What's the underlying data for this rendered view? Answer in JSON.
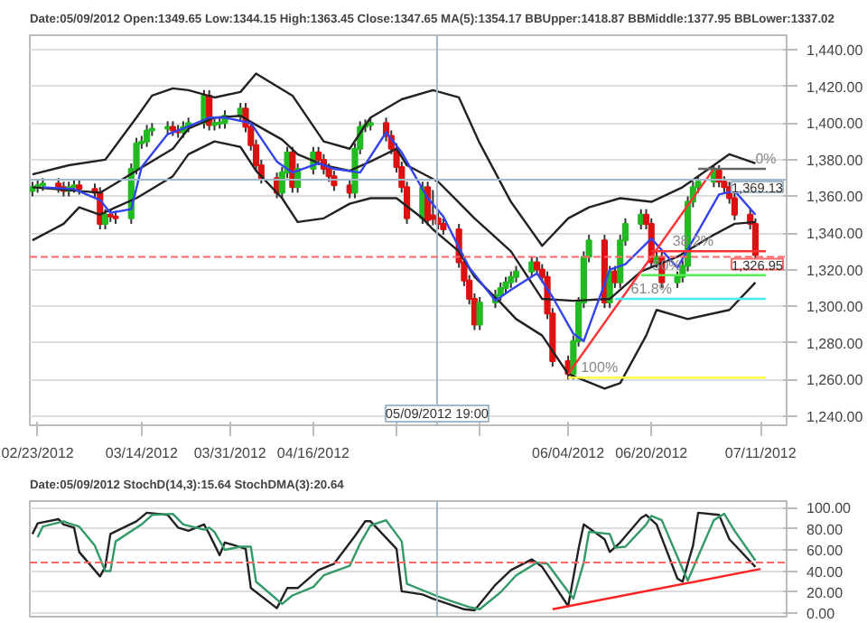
{
  "chart_data": [
    {
      "type": "candlestick",
      "title": "Date:05/09/2012 Open:1349.65 Low:1344.15 High:1363.45 Close:1347.65 MA(5):1354.17 BBUpper:1418.87 BBMiddle:1377.95 BBLower:1337.02",
      "x": [
        "2012-02-22",
        "2012-02-23",
        "2012-02-24",
        "2012-02-27",
        "2012-02-28",
        "2012-02-29",
        "2012-03-01",
        "2012-03-02",
        "2012-03-05",
        "2012-03-06",
        "2012-03-07",
        "2012-03-08",
        "2012-03-09",
        "2012-03-12",
        "2012-03-13",
        "2012-03-14",
        "2012-03-15",
        "2012-03-16",
        "2012-03-19",
        "2012-03-20",
        "2012-03-21",
        "2012-03-22",
        "2012-03-23",
        "2012-03-26",
        "2012-03-27",
        "2012-03-28",
        "2012-03-29",
        "2012-03-30",
        "2012-04-02",
        "2012-04-03",
        "2012-04-04",
        "2012-04-05",
        "2012-04-06",
        "2012-04-09",
        "2012-04-10",
        "2012-04-11",
        "2012-04-12",
        "2012-04-13",
        "2012-04-16",
        "2012-04-17",
        "2012-04-18",
        "2012-04-19",
        "2012-04-20",
        "2012-04-23",
        "2012-04-24",
        "2012-04-25",
        "2012-04-26",
        "2012-04-27",
        "2012-04-30",
        "2012-05-01",
        "2012-05-02",
        "2012-05-03",
        "2012-05-04",
        "2012-05-07",
        "2012-05-08",
        "2012-05-09",
        "2012-05-10",
        "2012-05-11",
        "2012-05-14",
        "2012-05-15",
        "2012-05-16",
        "2012-05-17",
        "2012-05-18",
        "2012-05-21",
        "2012-05-22",
        "2012-05-23",
        "2012-05-24",
        "2012-05-25",
        "2012-05-28",
        "2012-05-29",
        "2012-05-30",
        "2012-05-31",
        "2012-06-01",
        "2012-06-04",
        "2012-06-05",
        "2012-06-06",
        "2012-06-07",
        "2012-06-08",
        "2012-06-11",
        "2012-06-12",
        "2012-06-13",
        "2012-06-14",
        "2012-06-15",
        "2012-06-18",
        "2012-06-19",
        "2012-06-20",
        "2012-06-21",
        "2012-06-22",
        "2012-06-25",
        "2012-06-26",
        "2012-06-27",
        "2012-06-28",
        "2012-06-29",
        "2012-07-02",
        "2012-07-03",
        "2012-07-04",
        "2012-07-05",
        "2012-07-06",
        "2012-07-09",
        "2012-07-10"
      ],
      "ohlc": [
        [
          1363,
          1368,
          1360,
          1365
        ],
        [
          1365,
          1369,
          1362,
          1366
        ],
        [
          1366,
          1370,
          1363,
          1367
        ],
        [
          1367,
          1370,
          1362,
          1365
        ],
        [
          1365,
          1368,
          1360,
          1363
        ],
        [
          1363,
          1368,
          1360,
          1365
        ],
        [
          1365,
          1369,
          1362,
          1366
        ],
        [
          1366,
          1369,
          1361,
          1364
        ],
        [
          1364,
          1367,
          1359,
          1362
        ],
        [
          1362,
          1365,
          1342,
          1345
        ],
        [
          1345,
          1353,
          1342,
          1350
        ],
        [
          1350,
          1353,
          1346,
          1349
        ],
        [
          1349,
          1352,
          1345,
          1348
        ],
        [
          1348,
          1378,
          1345,
          1375
        ],
        [
          1375,
          1392,
          1372,
          1389
        ],
        [
          1389,
          1393,
          1386,
          1390
        ],
        [
          1390,
          1399,
          1387,
          1396
        ],
        [
          1396,
          1400,
          1393,
          1397
        ],
        [
          1397,
          1401,
          1394,
          1398
        ],
        [
          1398,
          1401,
          1393,
          1396
        ],
        [
          1396,
          1399,
          1392,
          1395
        ],
        [
          1395,
          1401,
          1392,
          1398
        ],
        [
          1398,
          1403,
          1395,
          1400
        ],
        [
          1400,
          1418,
          1397,
          1415
        ],
        [
          1415,
          1418,
          1396,
          1399
        ],
        [
          1399,
          1403,
          1396,
          1400
        ],
        [
          1400,
          1403,
          1397,
          1400
        ],
        [
          1400,
          1407,
          1397,
          1404
        ],
        [
          1404,
          1411,
          1401,
          1408
        ],
        [
          1408,
          1411,
          1395,
          1398
        ],
        [
          1398,
          1401,
          1385,
          1388
        ],
        [
          1388,
          1391,
          1374,
          1377
        ],
        [
          1377,
          1380,
          1367,
          1370
        ],
        [
          1370,
          1373,
          1359,
          1362
        ],
        [
          1362,
          1376,
          1359,
          1373
        ],
        [
          1373,
          1387,
          1370,
          1384
        ],
        [
          1384,
          1387,
          1362,
          1365
        ],
        [
          1365,
          1378,
          1362,
          1375
        ],
        [
          1375,
          1387,
          1372,
          1384
        ],
        [
          1384,
          1387,
          1377,
          1380
        ],
        [
          1380,
          1383,
          1372,
          1375
        ],
        [
          1375,
          1378,
          1368,
          1371
        ],
        [
          1371,
          1374,
          1363,
          1366
        ],
        [
          1366,
          1369,
          1359,
          1362
        ],
        [
          1362,
          1389,
          1359,
          1386
        ],
        [
          1386,
          1401,
          1383,
          1398
        ],
        [
          1398,
          1402,
          1395,
          1399
        ],
        [
          1399,
          1403,
          1396,
          1400
        ],
        [
          1400,
          1403,
          1390,
          1393
        ],
        [
          1393,
          1396,
          1383,
          1386
        ],
        [
          1386,
          1389,
          1373,
          1376
        ],
        [
          1376,
          1379,
          1362,
          1365
        ],
        [
          1365,
          1368,
          1345,
          1348
        ],
        [
          1348,
          1368,
          1345,
          1365
        ],
        [
          1365,
          1368,
          1344,
          1347
        ],
        [
          1349.65,
          1363.45,
          1344.15,
          1347.65
        ],
        [
          1348,
          1351,
          1342,
          1345
        ],
        [
          1345,
          1348,
          1339,
          1342
        ],
        [
          1342,
          1345,
          1321,
          1324
        ],
        [
          1324,
          1327,
          1311,
          1314
        ],
        [
          1314,
          1317,
          1301,
          1304
        ],
        [
          1304,
          1307,
          1287,
          1290
        ],
        [
          1290,
          1305,
          1287,
          1302
        ],
        [
          1302,
          1309,
          1299,
          1306
        ],
        [
          1306,
          1313,
          1303,
          1310
        ],
        [
          1310,
          1316,
          1307,
          1313
        ],
        [
          1313,
          1319,
          1310,
          1316
        ],
        [
          1316,
          1322,
          1313,
          1319
        ],
        [
          1319,
          1327,
          1316,
          1324
        ],
        [
          1324,
          1327,
          1317,
          1320
        ],
        [
          1320,
          1323,
          1313,
          1316
        ],
        [
          1316,
          1319,
          1293,
          1296
        ],
        [
          1296,
          1299,
          1267,
          1270
        ],
        [
          1270,
          1273,
          1260,
          1263
        ],
        [
          1263,
          1284,
          1260,
          1281
        ],
        [
          1281,
          1305,
          1278,
          1302
        ],
        [
          1302,
          1330,
          1299,
          1327
        ],
        [
          1327,
          1339,
          1324,
          1336
        ],
        [
          1336,
          1339,
          1299,
          1302
        ],
        [
          1302,
          1322,
          1299,
          1319
        ],
        [
          1319,
          1322,
          1310,
          1313
        ],
        [
          1313,
          1339,
          1310,
          1336
        ],
        [
          1336,
          1348,
          1333,
          1345
        ],
        [
          1345,
          1353,
          1342,
          1350
        ],
        [
          1350,
          1353,
          1342,
          1345
        ],
        [
          1345,
          1348,
          1321,
          1324
        ],
        [
          1324,
          1330,
          1321,
          1327
        ],
        [
          1327,
          1330,
          1310,
          1313
        ],
        [
          1313,
          1319,
          1310,
          1316
        ],
        [
          1316,
          1325,
          1313,
          1322
        ],
        [
          1322,
          1360,
          1319,
          1357
        ],
        [
          1357,
          1368,
          1354,
          1365
        ],
        [
          1365,
          1371,
          1362,
          1368
        ],
        [
          1368,
          1377,
          1365,
          1374
        ],
        [
          1374,
          1377,
          1365,
          1368
        ],
        [
          1368,
          1371,
          1362,
          1365
        ],
        [
          1365,
          1368,
          1356,
          1359
        ],
        [
          1359,
          1362,
          1347,
          1350
        ],
        [
          1350,
          1353,
          1342,
          1345
        ],
        [
          1345,
          1348,
          1325,
          1328
        ]
      ],
      "series": [
        {
          "type": "line",
          "color": "#222222",
          "x": [
            "2012-02-22",
            "2012-02-29",
            "2012-03-07",
            "2012-03-13",
            "2012-03-16",
            "2012-03-20",
            "2012-03-23",
            "2012-03-28",
            "2012-04-02",
            "2012-04-05",
            "2012-04-12",
            "2012-04-18",
            "2012-04-23",
            "2012-04-27",
            "2012-05-03",
            "2012-05-09",
            "2012-05-14",
            "2012-05-18",
            "2012-05-24",
            "2012-05-30",
            "2012-06-04",
            "2012-06-08",
            "2012-06-14",
            "2012-06-20",
            "2012-06-26",
            "2012-07-02",
            "2012-07-05",
            "2012-07-10"
          ],
          "values": [
            1372,
            1377,
            1380,
            1403,
            1415,
            1419,
            1418,
            1414,
            1417,
            1427,
            1415,
            1390,
            1386,
            1403,
            1413,
            1418,
            1414,
            1389,
            1357,
            1333,
            1348,
            1354,
            1359,
            1357,
            1365,
            1377,
            1383,
            1378
          ]
        },
        {
          "type": "line",
          "color": "#222222",
          "x": [
            "2012-02-22",
            "2012-03-06",
            "2012-03-09",
            "2012-03-13",
            "2012-03-20",
            "2012-03-23",
            "2012-03-28",
            "2012-04-02",
            "2012-04-05",
            "2012-04-10",
            "2012-04-13",
            "2012-04-18",
            "2012-04-23",
            "2012-04-27",
            "2012-05-02",
            "2012-05-04",
            "2012-05-10",
            "2012-05-17",
            "2012-05-24",
            "2012-05-30",
            "2012-06-05",
            "2012-06-12",
            "2012-06-18",
            "2012-06-25",
            "2012-07-02",
            "2012-07-06",
            "2012-07-10"
          ],
          "values": [
            1365,
            1362,
            1367,
            1374,
            1386,
            1397,
            1403,
            1404,
            1399,
            1391,
            1383,
            1377,
            1374,
            1379,
            1386,
            1377,
            1368,
            1348,
            1330,
            1304,
            1303,
            1304,
            1319,
            1327,
            1339,
            1345,
            1346
          ]
        },
        {
          "type": "line",
          "color": "#222222",
          "x": [
            "2012-02-22",
            "2012-02-28",
            "2012-03-02",
            "2012-03-06",
            "2012-03-09",
            "2012-03-13",
            "2012-03-20",
            "2012-03-23",
            "2012-03-28",
            "2012-04-02",
            "2012-04-05",
            "2012-04-10",
            "2012-04-13",
            "2012-04-18",
            "2012-04-23",
            "2012-04-27",
            "2012-05-02",
            "2012-05-07",
            "2012-05-09",
            "2012-05-14",
            "2012-05-17",
            "2012-05-22",
            "2012-05-25",
            "2012-05-30",
            "2012-06-04",
            "2012-06-11",
            "2012-06-14",
            "2012-06-19",
            "2012-06-21",
            "2012-06-27",
            "2012-07-05",
            "2012-07-10"
          ],
          "values": [
            1336,
            1345,
            1354,
            1350,
            1354,
            1359,
            1371,
            1383,
            1390,
            1387,
            1374,
            1359,
            1346,
            1348,
            1356,
            1359,
            1359,
            1348,
            1342,
            1330,
            1316,
            1302,
            1293,
            1284,
            1263,
            1255,
            1258,
            1284,
            1298,
            1293,
            1298,
            1313
          ]
        },
        {
          "type": "line",
          "color": "#3344ee",
          "x": [
            "2012-02-24",
            "2012-03-01",
            "2012-03-06",
            "2012-03-08",
            "2012-03-12",
            "2012-03-14",
            "2012-03-19",
            "2012-03-22",
            "2012-03-27",
            "2012-03-30",
            "2012-04-04",
            "2012-04-09",
            "2012-04-12",
            "2012-04-17",
            "2012-04-20",
            "2012-04-25",
            "2012-04-30",
            "2012-05-03",
            "2012-05-08",
            "2012-05-11",
            "2012-05-16",
            "2012-05-21",
            "2012-05-24",
            "2012-05-29",
            "2012-06-01",
            "2012-06-05",
            "2012-06-07",
            "2012-06-12",
            "2012-06-15",
            "2012-06-20",
            "2012-06-25",
            "2012-06-28",
            "2012-07-03",
            "2012-07-06",
            "2012-07-10"
          ],
          "values": [
            1365,
            1364,
            1358,
            1351,
            1353,
            1376,
            1394,
            1397,
            1403,
            1403,
            1400,
            1379,
            1373,
            1378,
            1375,
            1373,
            1395,
            1384,
            1359,
            1349,
            1321,
            1303,
            1309,
            1318,
            1305,
            1285,
            1281,
            1320,
            1323,
            1337,
            1321,
            1336,
            1361,
            1363,
            1350
          ]
        },
        {
          "type": "line",
          "color": "#ff3333",
          "x": [
            "2012-06-04",
            "2012-07-02"
          ],
          "values": [
            1263,
            1375
          ]
        },
        {
          "type": "line",
          "color": "#666666",
          "x": [
            "2012-06-29",
            "2012-07-12"
          ],
          "values": [
            1375,
            1375
          ]
        },
        {
          "type": "line",
          "color": "#ff3333",
          "x": [
            "2012-06-20",
            "2012-07-12"
          ],
          "values": [
            1330,
            1330
          ]
        },
        {
          "type": "line",
          "color": "#55ee55",
          "x": [
            "2012-06-18",
            "2012-07-12"
          ],
          "values": [
            1317,
            1317
          ]
        },
        {
          "type": "line",
          "color": "#44eeee",
          "x": [
            "2012-06-13",
            "2012-07-12"
          ],
          "values": [
            1304,
            1304
          ]
        },
        {
          "type": "line",
          "color": "#ffff44",
          "x": [
            "2012-06-04",
            "2012-07-12"
          ],
          "values": [
            1261,
            1261
          ]
        }
      ],
      "annotations": [
        {
          "text": "0%",
          "x": "2012-07-12",
          "y": 1375
        },
        {
          "text": "38.2%",
          "x": "2012-06-28",
          "y": 1330
        },
        {
          "text": "50%",
          "x": "2012-06-23",
          "y": 1317
        },
        {
          "text": "61.8%",
          "x": "2012-06-20",
          "y": 1304
        },
        {
          "text": "100%",
          "x": "2012-06-10",
          "y": 1261
        }
      ],
      "ref_lines": [
        {
          "axis": "x",
          "value": "2012-05-09T19:00",
          "label": "05/09/2012 19:00",
          "color": "#a0b8c8"
        },
        {
          "axis": "y",
          "value": 1369.13,
          "label": "1,369.13",
          "color": "#a0b8c8"
        },
        {
          "axis": "y",
          "value": 1326.95,
          "label": "1,326.95",
          "color": "#ff6666",
          "line_style": "dashed"
        }
      ],
      "xlim": [
        "2012-02-21T12:00",
        "2012-07-16"
      ],
      "xticks": [
        {
          "value": "2012-02-23",
          "label": "02/23/2012"
        },
        {
          "value": "2012-03-14",
          "label": "03/14/2012"
        },
        {
          "value": "2012-03-31",
          "label": "03/31/2012"
        },
        {
          "value": "2012-04-16",
          "label": "04/16/2012"
        },
        {
          "value": "2012-05-02",
          "label": null
        },
        {
          "value": "2012-05-18",
          "label": null
        },
        {
          "value": "2012-06-04",
          "label": "06/04/2012"
        },
        {
          "value": "2012-06-20",
          "label": "06/20/2012"
        },
        {
          "value": "2012-07-11",
          "label": "07/11/2012"
        }
      ],
      "ylim": [
        1235,
        1448
      ],
      "yticks": [
        {
          "value": 1240,
          "label": "1,240.00"
        },
        {
          "value": 1260,
          "label": "1,260.00"
        },
        {
          "value": 1280,
          "label": "1,280.00"
        },
        {
          "value": 1300,
          "label": "1,300.00"
        },
        {
          "value": 1320,
          "label": "1,320.00"
        },
        {
          "value": 1340,
          "label": "1,340.00"
        },
        {
          "value": 1360,
          "label": "1,360.00"
        },
        {
          "value": 1380,
          "label": "1,380.00"
        },
        {
          "value": 1400,
          "label": "1,400.00"
        },
        {
          "value": 1420,
          "label": "1,420.00"
        },
        {
          "value": 1440,
          "label": "1,440.00"
        }
      ],
      "grid": "y"
    },
    {
      "type": "line",
      "title": "Date:05/09/2012 StochD(14,3):15.64 StochDMA(3):20.64",
      "series": [
        {
          "color": "#222222",
          "x": [
            "2012-02-22",
            "2012-02-23",
            "2012-02-27",
            "2012-02-28",
            "2012-03-01",
            "2012-03-02",
            "2012-03-06",
            "2012-03-07",
            "2012-03-08",
            "2012-03-13",
            "2012-03-15",
            "2012-03-19",
            "2012-03-21",
            "2012-03-23",
            "2012-03-26",
            "2012-03-27",
            "2012-03-29",
            "2012-03-30",
            "2012-04-03",
            "2012-04-04",
            "2012-04-09",
            "2012-04-11",
            "2012-04-13",
            "2012-04-17",
            "2012-04-20",
            "2012-04-24",
            "2012-04-26",
            "2012-04-27",
            "2012-05-02",
            "2012-05-03",
            "2012-05-07",
            "2012-05-09",
            "2012-05-15",
            "2012-05-17",
            "2012-05-21",
            "2012-05-24",
            "2012-05-28",
            "2012-05-30",
            "2012-06-04",
            "2012-06-06",
            "2012-06-07",
            "2012-06-11",
            "2012-06-12",
            "2012-06-14",
            "2012-06-18",
            "2012-06-19",
            "2012-06-21",
            "2012-06-25",
            "2012-06-26",
            "2012-06-28",
            "2012-06-29",
            "2012-07-03",
            "2012-07-05",
            "2012-07-10"
          ],
          "values": [
            75,
            85,
            89,
            84,
            81,
            58,
            35,
            44,
            75,
            87,
            95,
            93,
            81,
            78,
            84,
            75,
            55,
            67,
            61,
            24,
            5,
            24,
            24,
            41,
            47,
            73,
            87,
            87,
            61,
            21,
            18,
            14,
            4,
            3,
            27,
            41,
            51,
            44,
            7,
            61,
            84,
            70,
            58,
            67,
            90,
            93,
            84,
            33,
            30,
            64,
            95,
            93,
            70,
            44
          ]
        },
        {
          "color": "#339966",
          "x": [
            "2012-02-23",
            "2012-02-24",
            "2012-02-28",
            "2012-02-29",
            "2012-03-02",
            "2012-03-05",
            "2012-03-07",
            "2012-03-08",
            "2012-03-09",
            "2012-03-14",
            "2012-03-16",
            "2012-03-20",
            "2012-03-22",
            "2012-03-26",
            "2012-03-27",
            "2012-03-28",
            "2012-03-30",
            "2012-04-02",
            "2012-04-04",
            "2012-04-05",
            "2012-04-10",
            "2012-04-12",
            "2012-04-16",
            "2012-04-18",
            "2012-04-23",
            "2012-04-25",
            "2012-04-27",
            "2012-04-30",
            "2012-05-03",
            "2012-05-04",
            "2012-05-08",
            "2012-05-10",
            "2012-05-16",
            "2012-05-18",
            "2012-05-22",
            "2012-05-25",
            "2012-05-29",
            "2012-05-31",
            "2012-06-05",
            "2012-06-07",
            "2012-06-08",
            "2012-06-12",
            "2012-06-13",
            "2012-06-15",
            "2012-06-19",
            "2012-06-20",
            "2012-06-22",
            "2012-06-26",
            "2012-06-27",
            "2012-06-29",
            "2012-07-02",
            "2012-07-04",
            "2012-07-06",
            "2012-07-10"
          ],
          "values": [
            72,
            82,
            87,
            85,
            82,
            64,
            40,
            40,
            68,
            84,
            93,
            94,
            84,
            79,
            81,
            77,
            60,
            63,
            63,
            30,
            9,
            17,
            25,
            36,
            45,
            66,
            83,
            88,
            68,
            28,
            20,
            16,
            6,
            4,
            20,
            36,
            48,
            47,
            14,
            48,
            77,
            75,
            62,
            63,
            84,
            92,
            88,
            42,
            31,
            54,
            88,
            94,
            78,
            50
          ]
        },
        {
          "color": "#ff2222",
          "x": [
            "2012-06-01",
            "2012-07-11"
          ],
          "values": [
            4,
            42
          ]
        }
      ],
      "ref_lines": [
        {
          "axis": "x",
          "value": "2012-05-09T19:00",
          "color": "#a0b8c8"
        },
        {
          "axis": "y",
          "value": 48,
          "color": "#ff6666",
          "line_style": "dashed"
        }
      ],
      "xlim": [
        "2012-02-21T12:00",
        "2012-07-16"
      ],
      "ylim": [
        -3,
        106
      ],
      "yticks": [
        {
          "value": 0,
          "label": "0.00"
        },
        {
          "value": 20,
          "label": "20.00"
        },
        {
          "value": 40,
          "label": "40.00"
        },
        {
          "value": 60,
          "label": "60.00"
        },
        {
          "value": 80,
          "label": "80.00"
        },
        {
          "value": 100,
          "label": "100.00"
        }
      ],
      "tick_labels": "y",
      "grid": "y"
    }
  ]
}
